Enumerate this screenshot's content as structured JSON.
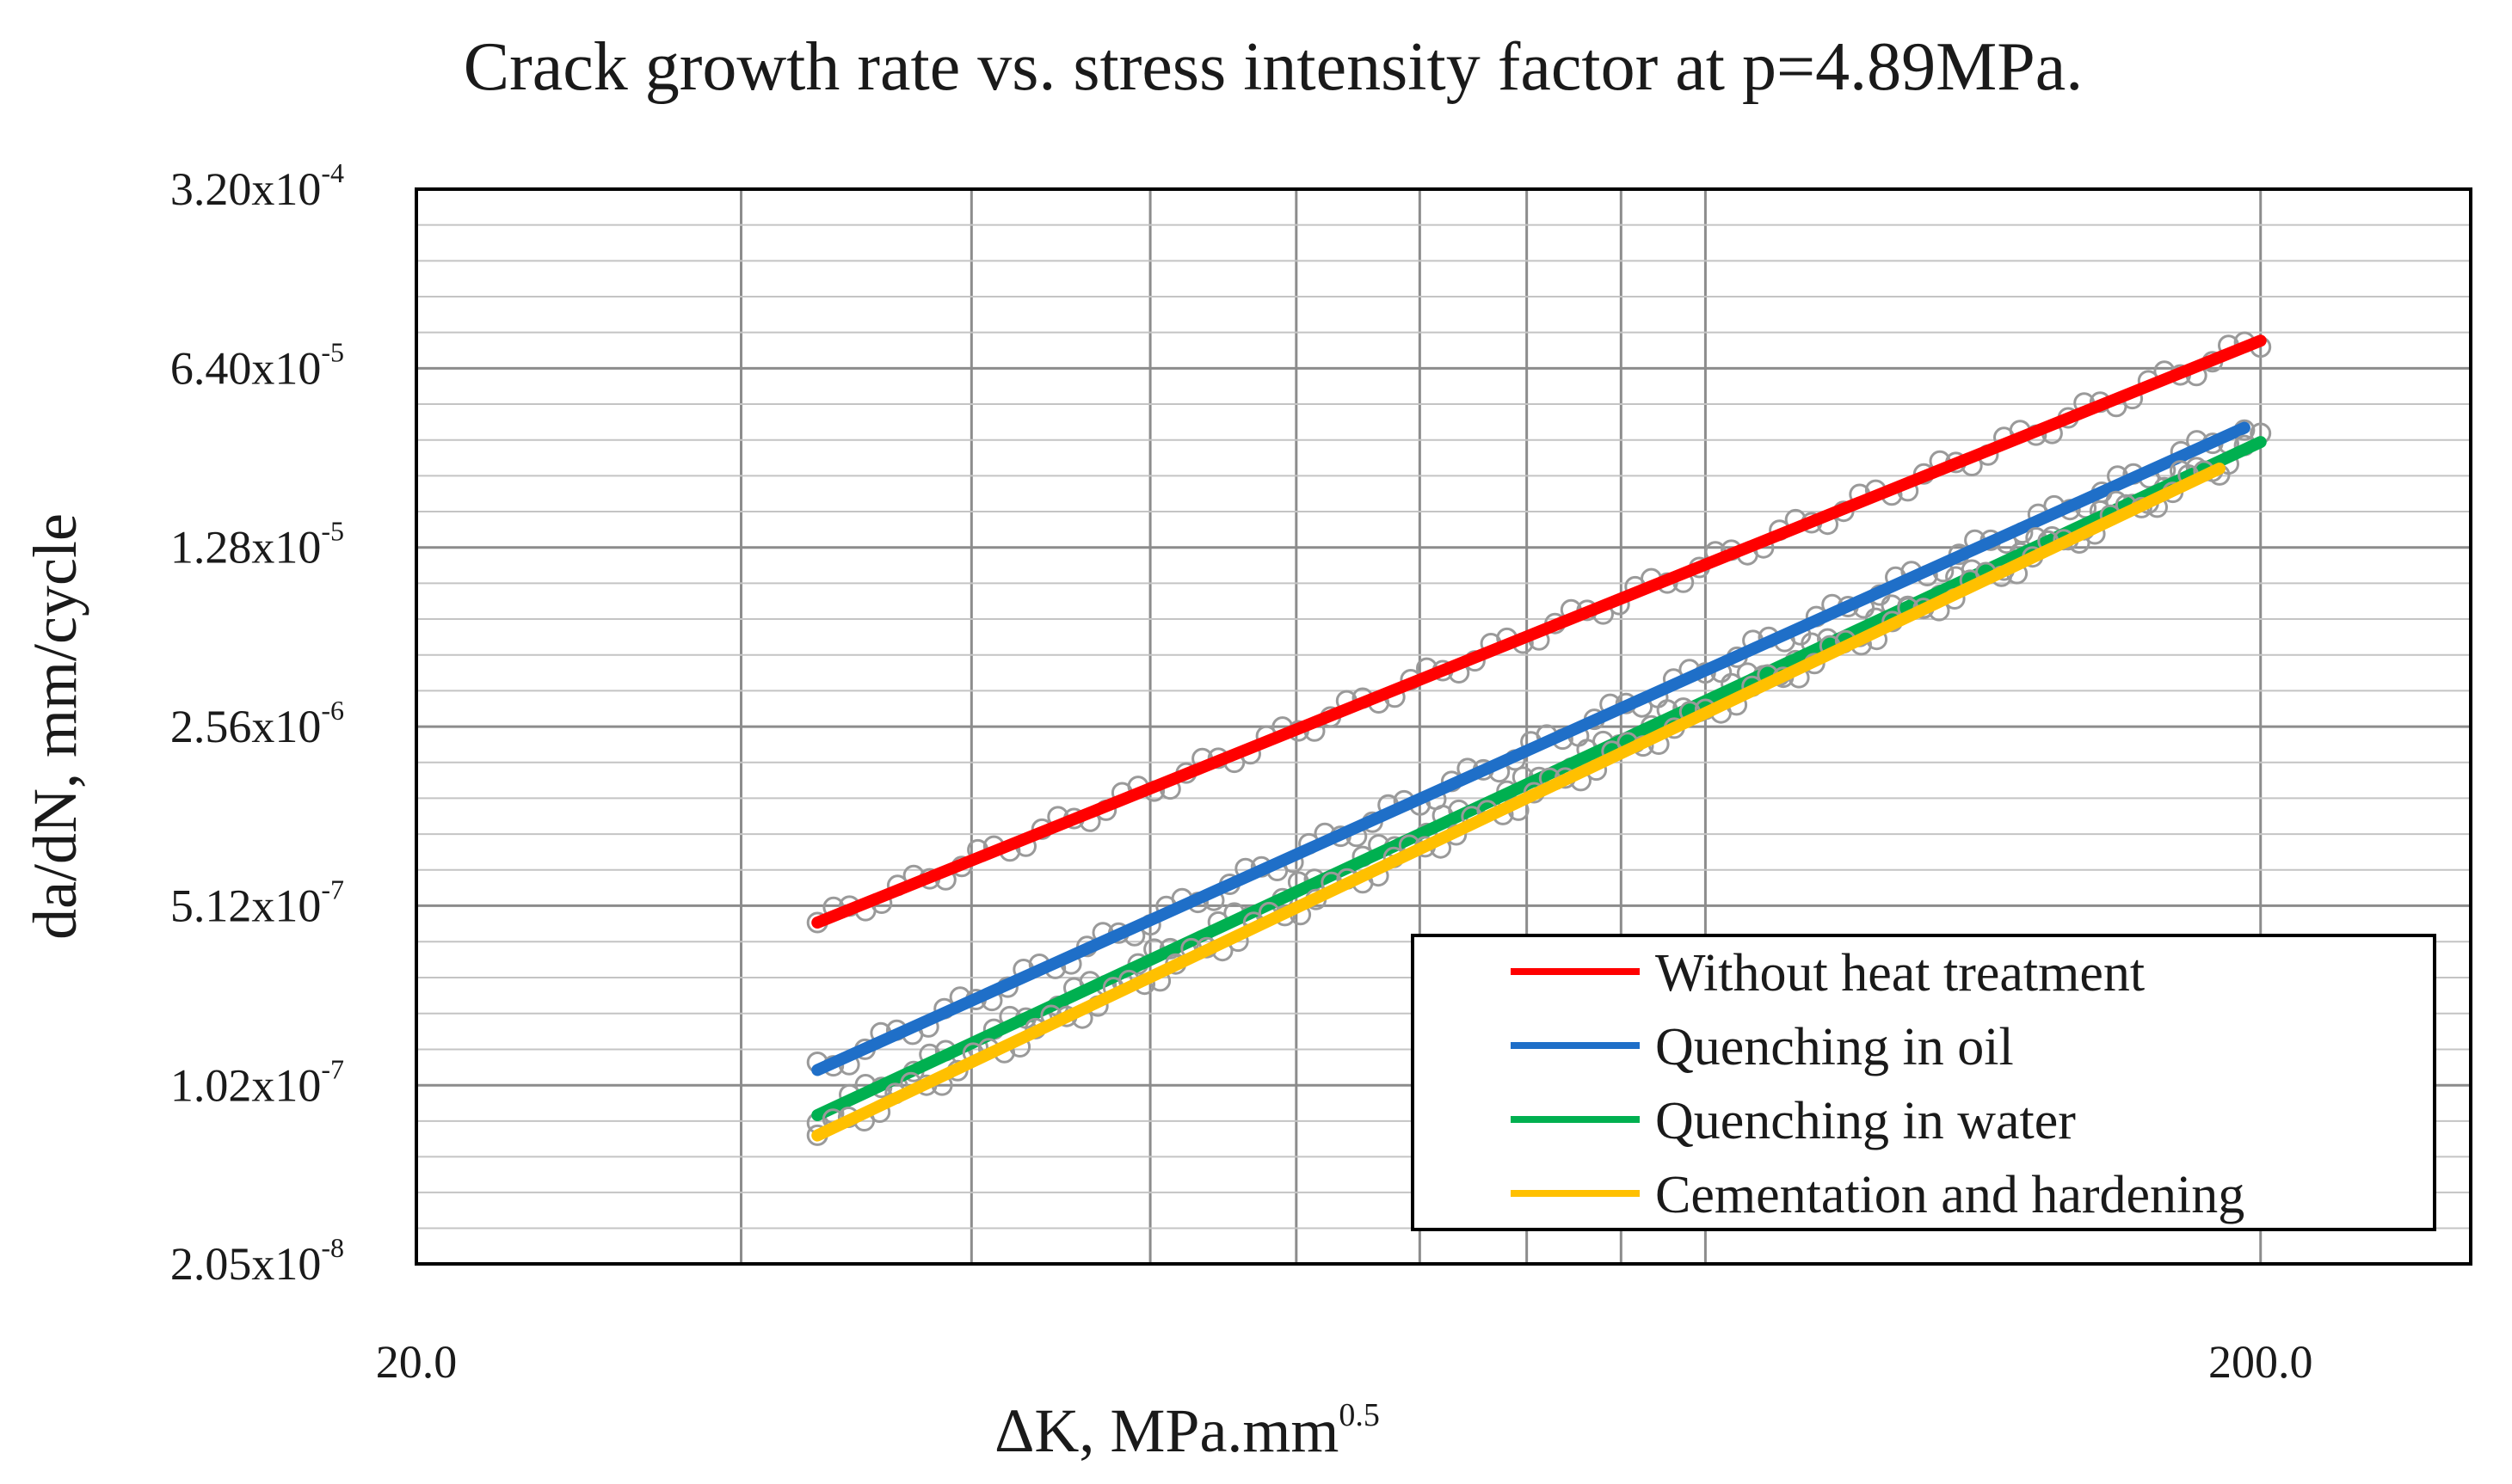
{
  "chart_data": {
    "type": "scatter",
    "title": "Crack growth rate vs. stress intensity factor at p=4.89MPa.",
    "xlabel": {
      "base": "ΔK, MPa.mm",
      "sup": "0.5"
    },
    "ylabel": "da/dN, mm/cycle",
    "x_scale": "log",
    "y_scale": "log",
    "xlim": [
      20.0,
      260.0
    ],
    "ylim": [
      2.05e-08,
      0.00032
    ],
    "x_ticks": [
      {
        "value": 20.0,
        "label": "20.0"
      },
      {
        "value": 200.0,
        "label": "200.0"
      }
    ],
    "y_ticks": [
      {
        "value": 0.00032,
        "mantissa": "3.20x10",
        "exp": "-4"
      },
      {
        "value": 6.4e-05,
        "mantissa": "6.40x10",
        "exp": "-5"
      },
      {
        "value": 1.28e-05,
        "mantissa": "1.28x10",
        "exp": "-5"
      },
      {
        "value": 2.56e-06,
        "mantissa": "2.56x10",
        "exp": "-6"
      },
      {
        "value": 5.12e-07,
        "mantissa": "5.12x10",
        "exp": "-7"
      },
      {
        "value": 1.02e-07,
        "mantissa": "1.02x10",
        "exp": "-7"
      },
      {
        "value": 2.05e-08,
        "mantissa": "2.05x10",
        "exp": "-8"
      }
    ],
    "grid": true,
    "legend_position": "bottom-right",
    "series": [
      {
        "name": "Without heat treatment",
        "color": "#ff0000",
        "x": [
          33,
          200
        ],
        "y": [
          4.4e-07,
          8.2e-05
        ]
      },
      {
        "name": "Quenching in oil",
        "color": "#1f6fc8",
        "x": [
          33,
          196
        ],
        "y": [
          1.17e-07,
          3.75e-05
        ]
      },
      {
        "name": "Quenching in water",
        "color": "#00b050",
        "x": [
          33,
          200
        ],
        "y": [
          7.8e-08,
          3.3e-05
        ]
      },
      {
        "name": "Cementation and hardening",
        "color": "#ffc000",
        "x": [
          33,
          190
        ],
        "y": [
          6.5e-08,
          2.6e-05
        ]
      }
    ],
    "marker_color": "#9a9a9a"
  }
}
